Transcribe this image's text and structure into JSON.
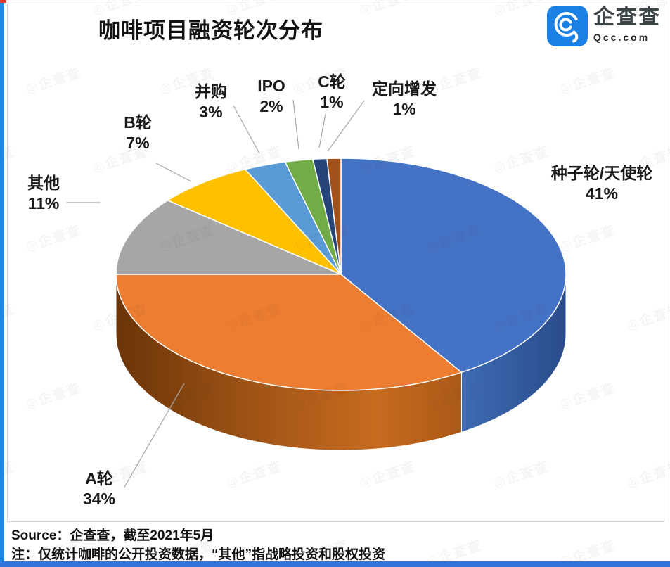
{
  "page": {
    "title": "咖啡项目融资轮次分布",
    "logo": {
      "name": "企查查",
      "domain": "Qcc.com",
      "icon_color": "#1B80E4"
    },
    "source_line": "Source：企查查，截至2021年5月",
    "note_line": "注：仅统计咖啡的公开投资数据，“其他”指战略投资和股权投资",
    "watermark_text": "◎企查查",
    "accent_colors": {
      "left_stripe": "#1E88E5",
      "top_corner": "#E03A3A",
      "bottom_bar": "#3273D9",
      "frame_border": "#D6D6D6"
    }
  },
  "chart_data": {
    "type": "pie",
    "style": "3d",
    "title": "咖啡项目融资轮次分布",
    "unit": "%",
    "start_angle_deg": 0,
    "direction": "clockwise",
    "legend_position": "none",
    "series": [
      {
        "label": "种子轮/天使轮",
        "value": 41,
        "color": "#4472C4",
        "side_stops": [
          {
            "off": 0,
            "color": "#3E6BB4"
          },
          {
            "off": 1,
            "color": "#2A4C8C"
          }
        ]
      },
      {
        "label": "A轮",
        "value": 34,
        "color": "#ED7D31",
        "side_stops": [
          {
            "off": 0,
            "color": "#6B3408"
          },
          {
            "off": 0.35,
            "color": "#9A5014"
          },
          {
            "off": 0.75,
            "color": "#C76B1F"
          },
          {
            "off": 1,
            "color": "#AA5917"
          }
        ]
      },
      {
        "label": "其他",
        "value": 11,
        "color": "#A6A6A6"
      },
      {
        "label": "B轮",
        "value": 7,
        "color": "#FFC000"
      },
      {
        "label": "并购",
        "value": 3,
        "color": "#5B9BD5"
      },
      {
        "label": "IPO",
        "value": 2,
        "color": "#70AD47"
      },
      {
        "label": "C轮",
        "value": 1,
        "color": "#264478"
      },
      {
        "label": "定向增发",
        "value": 1,
        "color": "#A2511B"
      }
    ]
  }
}
